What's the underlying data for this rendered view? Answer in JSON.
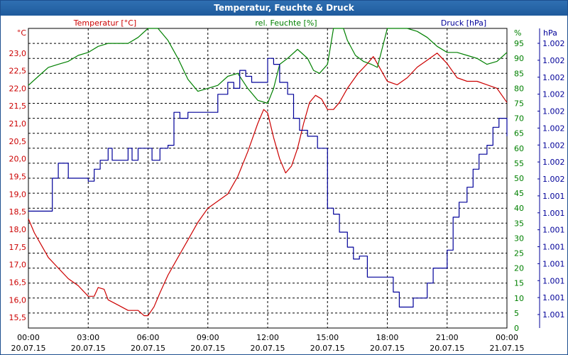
{
  "window": {
    "title": "Temperatur, Feuchte & Druck"
  },
  "colors": {
    "temperature": "#cc0000",
    "humidity": "#008000",
    "pressure": "#000099",
    "frame": "#1f5b9d",
    "grid": "#000000"
  },
  "chart_data": {
    "type": "line",
    "title": "Temperatur, Feuchte & Druck",
    "grid": true,
    "x_ticks": [
      {
        "time": "00:00",
        "date": "20.07.15"
      },
      {
        "time": "03:00",
        "date": "20.07.15"
      },
      {
        "time": "06:00",
        "date": "20.07.15"
      },
      {
        "time": "09:00",
        "date": "20.07.15"
      },
      {
        "time": "12:00",
        "date": "20.07.15"
      },
      {
        "time": "15:00",
        "date": "20.07.15"
      },
      {
        "time": "18:00",
        "date": "20.07.15"
      },
      {
        "time": "21:00",
        "date": "20.07.15"
      },
      {
        "time": "00:00",
        "date": "21.07.15"
      }
    ],
    "x_range_hours": [
      0,
      24
    ],
    "axes": {
      "temperature": {
        "label": "Temperatur [°C]",
        "unit_label": "°C",
        "ylim": [
          15.2,
          23.7
        ],
        "ticks": [
          "15,5",
          "16,0",
          "16,5",
          "17,0",
          "17,5",
          "18,0",
          "18,5",
          "19,0",
          "19,5",
          "20,0",
          "20,5",
          "21,0",
          "21,5",
          "22,0",
          "22,5",
          "23,0"
        ]
      },
      "humidity": {
        "label": "rel. Feuchte [%]",
        "unit_label": "%",
        "ylim": [
          0,
          100
        ],
        "ticks": [
          "0",
          "5",
          "10",
          "15",
          "20",
          "25",
          "30",
          "35",
          "40",
          "45",
          "50",
          "55",
          "60",
          "65",
          "70",
          "75",
          "80",
          "85",
          "90",
          "95"
        ]
      },
      "pressure": {
        "label": "Druck [hPa]",
        "unit_label": "hPa",
        "ticks": [
          "1.001",
          "1.001",
          "1.001",
          "1.001",
          "1.001",
          "1.001",
          "1.001",
          "1.001",
          "1.002",
          "1.002",
          "1.002",
          "1.002",
          "1.002",
          "1.002",
          "1.002",
          "1.002",
          "1.002"
        ]
      }
    },
    "series": [
      {
        "name": "Temperatur [°C]",
        "axis": "temperature",
        "color": "#cc0000",
        "points": [
          [
            0,
            18.3
          ],
          [
            0.3,
            17.9
          ],
          [
            0.7,
            17.5
          ],
          [
            1,
            17.2
          ],
          [
            1.5,
            16.9
          ],
          [
            2,
            16.6
          ],
          [
            2.5,
            16.4
          ],
          [
            3,
            16.1
          ],
          [
            3.3,
            16.1
          ],
          [
            3.5,
            16.35
          ],
          [
            3.8,
            16.3
          ],
          [
            4,
            16.0
          ],
          [
            4.5,
            15.85
          ],
          [
            5,
            15.7
          ],
          [
            5.5,
            15.7
          ],
          [
            5.8,
            15.55
          ],
          [
            6,
            15.55
          ],
          [
            6.3,
            15.8
          ],
          [
            6.6,
            16.2
          ],
          [
            7,
            16.7
          ],
          [
            7.5,
            17.2
          ],
          [
            8,
            17.7
          ],
          [
            8.5,
            18.2
          ],
          [
            9,
            18.6
          ],
          [
            9.5,
            18.8
          ],
          [
            10,
            19.0
          ],
          [
            10.5,
            19.5
          ],
          [
            11,
            20.2
          ],
          [
            11.5,
            21.0
          ],
          [
            11.8,
            21.4
          ],
          [
            12,
            21.3
          ],
          [
            12.3,
            20.6
          ],
          [
            12.6,
            20.0
          ],
          [
            12.9,
            19.6
          ],
          [
            13.2,
            19.8
          ],
          [
            13.5,
            20.3
          ],
          [
            13.8,
            21.0
          ],
          [
            14.1,
            21.6
          ],
          [
            14.4,
            21.8
          ],
          [
            14.7,
            21.7
          ],
          [
            15,
            21.4
          ],
          [
            15.3,
            21.4
          ],
          [
            15.6,
            21.6
          ],
          [
            16,
            22.0
          ],
          [
            16.5,
            22.4
          ],
          [
            17,
            22.7
          ],
          [
            17.3,
            22.9
          ],
          [
            17.6,
            22.6
          ],
          [
            18,
            22.2
          ],
          [
            18.5,
            22.1
          ],
          [
            19,
            22.3
          ],
          [
            19.5,
            22.6
          ],
          [
            20,
            22.8
          ],
          [
            20.5,
            23.0
          ],
          [
            21,
            22.7
          ],
          [
            21.5,
            22.3
          ],
          [
            22,
            22.2
          ],
          [
            22.5,
            22.2
          ],
          [
            23,
            22.1
          ],
          [
            23.5,
            22.0
          ],
          [
            24,
            21.6
          ]
        ]
      },
      {
        "name": "rel. Feuchte [%]",
        "axis": "humidity",
        "color": "#008000",
        "points": [
          [
            0,
            81
          ],
          [
            0.5,
            84
          ],
          [
            1,
            87
          ],
          [
            1.5,
            88
          ],
          [
            2,
            89
          ],
          [
            2.5,
            91
          ],
          [
            3,
            92
          ],
          [
            3.5,
            94
          ],
          [
            4,
            95
          ],
          [
            4.5,
            95
          ],
          [
            5,
            95
          ],
          [
            5.5,
            97
          ],
          [
            6,
            100
          ],
          [
            6.5,
            100
          ],
          [
            7,
            96
          ],
          [
            7.5,
            90
          ],
          [
            8,
            83
          ],
          [
            8.5,
            79
          ],
          [
            9,
            80
          ],
          [
            9.5,
            81
          ],
          [
            10,
            84
          ],
          [
            10.5,
            85
          ],
          [
            11,
            80
          ],
          [
            11.5,
            76
          ],
          [
            12,
            75
          ],
          [
            12.3,
            80
          ],
          [
            12.6,
            88
          ],
          [
            13,
            90
          ],
          [
            13.5,
            93
          ],
          [
            14,
            90
          ],
          [
            14.3,
            86
          ],
          [
            14.6,
            85
          ],
          [
            15,
            88
          ],
          [
            15.3,
            100
          ],
          [
            15.8,
            100
          ],
          [
            16,
            96
          ],
          [
            16.4,
            91
          ],
          [
            16.8,
            89
          ],
          [
            17.2,
            88
          ],
          [
            17.5,
            87
          ],
          [
            18,
            100
          ],
          [
            19,
            100
          ],
          [
            19.5,
            99
          ],
          [
            20,
            97
          ],
          [
            20.5,
            94
          ],
          [
            21,
            92
          ],
          [
            21.5,
            92
          ],
          [
            22,
            91
          ],
          [
            22.5,
            90
          ],
          [
            23,
            88
          ],
          [
            23.5,
            89
          ],
          [
            24,
            92
          ]
        ]
      },
      {
        "name": "Druck [hPa]",
        "axis": "pressure",
        "color": "#000099",
        "step": true,
        "points": [
          [
            0,
            39
          ],
          [
            1,
            39
          ],
          [
            1.2,
            50
          ],
          [
            1.5,
            55
          ],
          [
            2,
            50
          ],
          [
            2.8,
            50
          ],
          [
            3,
            49
          ],
          [
            3.3,
            53
          ],
          [
            3.6,
            56
          ],
          [
            4,
            60
          ],
          [
            4.2,
            56
          ],
          [
            4.6,
            56
          ],
          [
            5,
            60
          ],
          [
            5.2,
            56
          ],
          [
            5.5,
            60
          ],
          [
            5.9,
            60
          ],
          [
            6.2,
            56
          ],
          [
            6.6,
            60
          ],
          [
            7,
            61
          ],
          [
            7.3,
            72
          ],
          [
            7.6,
            70
          ],
          [
            8,
            72
          ],
          [
            9.3,
            72
          ],
          [
            9.5,
            78
          ],
          [
            10,
            82
          ],
          [
            10.3,
            80
          ],
          [
            10.6,
            86
          ],
          [
            10.9,
            84
          ],
          [
            11.2,
            82
          ],
          [
            11.6,
            82
          ],
          [
            12,
            90
          ],
          [
            12.3,
            88
          ],
          [
            12.6,
            82
          ],
          [
            13,
            78
          ],
          [
            13.3,
            70
          ],
          [
            13.6,
            66
          ],
          [
            14,
            64
          ],
          [
            14.5,
            60
          ],
          [
            14.8,
            60
          ],
          [
            15,
            40
          ],
          [
            15.3,
            38
          ],
          [
            15.6,
            32
          ],
          [
            16,
            27
          ],
          [
            16.3,
            23
          ],
          [
            16.6,
            24
          ],
          [
            17,
            17
          ],
          [
            17.5,
            17
          ],
          [
            18,
            17
          ],
          [
            18.3,
            12
          ],
          [
            18.6,
            7
          ],
          [
            19,
            7
          ],
          [
            19.3,
            10
          ],
          [
            19.7,
            10
          ],
          [
            20,
            15
          ],
          [
            20.3,
            20
          ],
          [
            20.6,
            20
          ],
          [
            21,
            26
          ],
          [
            21.3,
            37
          ],
          [
            21.6,
            42
          ],
          [
            22,
            47
          ],
          [
            22.3,
            53
          ],
          [
            22.6,
            58
          ],
          [
            23,
            61
          ],
          [
            23.3,
            67
          ],
          [
            23.6,
            70
          ],
          [
            24,
            64
          ]
        ]
      }
    ]
  }
}
